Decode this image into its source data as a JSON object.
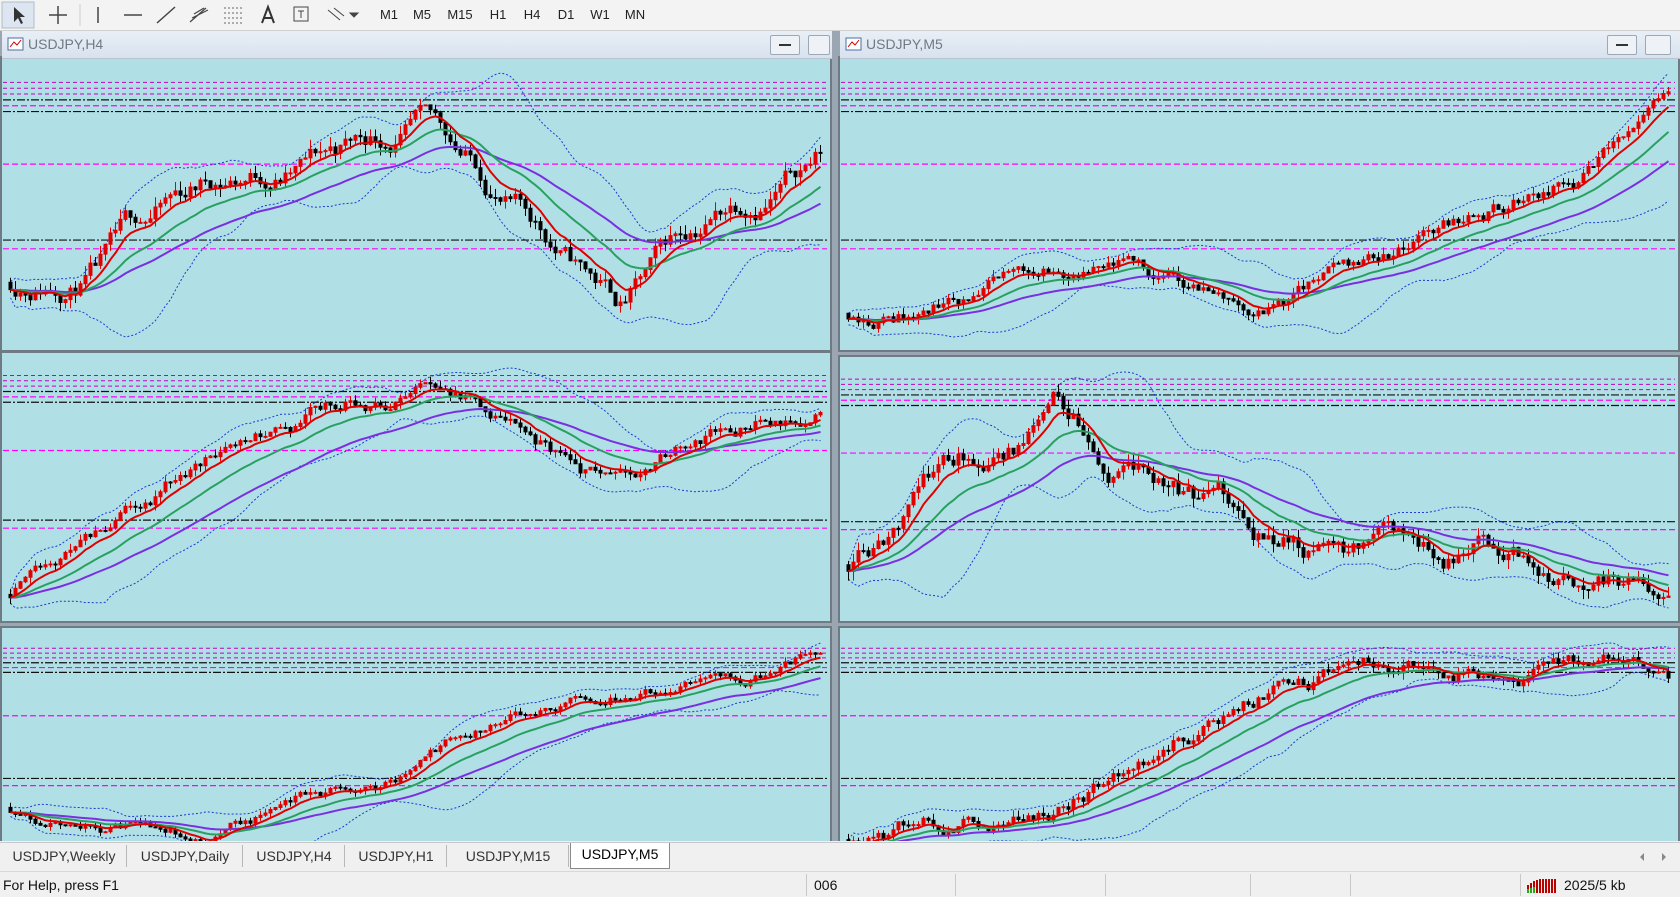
{
  "toolbar": {
    "timeframes": [
      "M1",
      "M5",
      "M15",
      "H1",
      "H4",
      "D1",
      "W1",
      "MN"
    ]
  },
  "windows": [
    {
      "title": "USDJPY,H4"
    },
    {
      "title": "USDJPY,M5"
    }
  ],
  "tabs": [
    "USDJPY,Weekly",
    "USDJPY,Daily",
    "USDJPY,H4",
    "USDJPY,H1",
    "USDJPY,M15",
    "USDJPY,M5"
  ],
  "status": {
    "help": "For Help, press F1",
    "profile": "006",
    "traffic": "2025/5 kb"
  }
}
